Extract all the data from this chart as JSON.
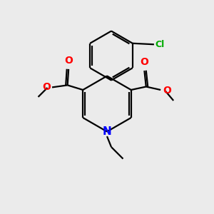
{
  "background_color": "#EBEBEB",
  "bond_color": "#000000",
  "nitrogen_color": "#0000FF",
  "oxygen_color": "#FF0000",
  "chlorine_color": "#00AA00",
  "line_width": 1.6,
  "figsize": [
    3.0,
    3.0
  ],
  "dpi": 100,
  "xlim": [
    0,
    10
  ],
  "ylim": [
    0,
    10
  ]
}
